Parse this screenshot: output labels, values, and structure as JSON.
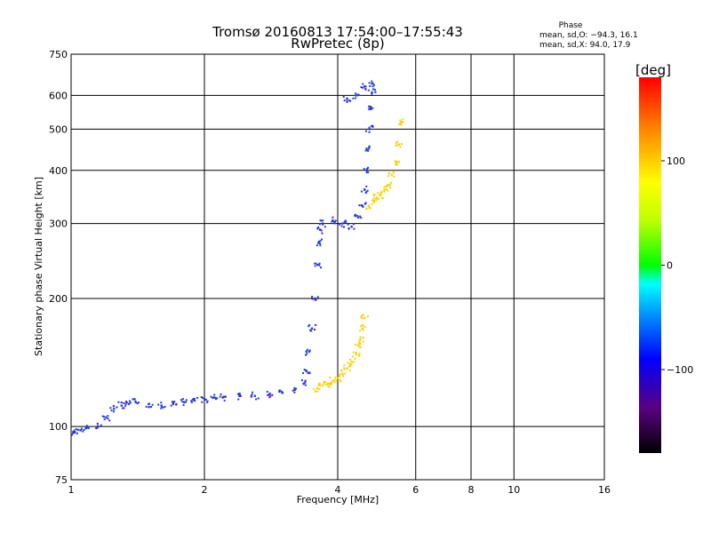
{
  "chart_data": {
    "type": "scatter",
    "title": "Tromsø 20160813 17:54:00–17:55:43",
    "subtitle": "RwPretec (8p)",
    "xlabel": "Frequency [MHz]",
    "ylabel": "Stationary phase Virtual Height [km]",
    "x_scale": "log",
    "y_scale": "log",
    "xlim": [
      1,
      16
    ],
    "ylim": [
      75,
      750
    ],
    "x_ticks": [
      "1",
      "2",
      "4",
      "6",
      "8",
      "10",
      "16"
    ],
    "x_tick_values": [
      1,
      2,
      4,
      6,
      8,
      10,
      16
    ],
    "y_ticks": [
      "75",
      "100",
      "200",
      "300",
      "400",
      "500",
      "600",
      "750"
    ],
    "y_tick_values": [
      75,
      100,
      200,
      300,
      400,
      500,
      600,
      750
    ],
    "grid": true,
    "phase_box": {
      "title": "Phase",
      "line1": "mean, sd,O: −94.3, 16.1",
      "line2": "mean, sd,X:  94.0, 17.9"
    },
    "colorbar": {
      "label": "[deg]",
      "range": [
        -180,
        180
      ],
      "ticks": [
        "100",
        "0",
        "−100"
      ],
      "tick_values": [
        100,
        0,
        -100
      ]
    },
    "series": [
      {
        "name": "O",
        "phase_deg": -94,
        "x": [
          1.02,
          1.05,
          1.08,
          1.15,
          1.2,
          1.25,
          1.3,
          1.35,
          1.4,
          1.5,
          1.6,
          1.7,
          1.8,
          1.9,
          2.0,
          2.1,
          2.2,
          2.4,
          2.6,
          2.8,
          3.0,
          3.2,
          3.35,
          3.4,
          3.45,
          3.5,
          3.55,
          3.6,
          3.62,
          3.65,
          3.7,
          3.9,
          4.1,
          4.3,
          4.45,
          4.55,
          4.6,
          4.65,
          4.7,
          4.72,
          4.75,
          4.78,
          4.8,
          4.6,
          4.4,
          4.2
        ],
        "y": [
          97,
          98,
          99,
          100,
          105,
          110,
          112,
          113,
          114,
          113,
          112,
          113,
          114,
          115,
          116,
          117,
          117,
          118,
          118,
          119,
          120,
          122,
          126,
          135,
          150,
          170,
          200,
          240,
          270,
          290,
          300,
          305,
          300,
          295,
          310,
          330,
          360,
          400,
          450,
          500,
          560,
          610,
          640,
          630,
          600,
          590
        ]
      },
      {
        "name": "X",
        "phase_deg": 94,
        "x": [
          3.6,
          3.7,
          3.8,
          3.9,
          4.0,
          4.1,
          4.2,
          4.3,
          4.4,
          4.45,
          4.5,
          4.55,
          4.6,
          4.7,
          4.8,
          4.9,
          5.0,
          5.1,
          5.2,
          5.3,
          5.4,
          5.5,
          5.6
        ],
        "y": [
          123,
          125,
          126,
          128,
          130,
          133,
          137,
          142,
          148,
          155,
          160,
          170,
          180,
          330,
          340,
          345,
          350,
          360,
          370,
          390,
          420,
          460,
          520
        ]
      }
    ]
  }
}
